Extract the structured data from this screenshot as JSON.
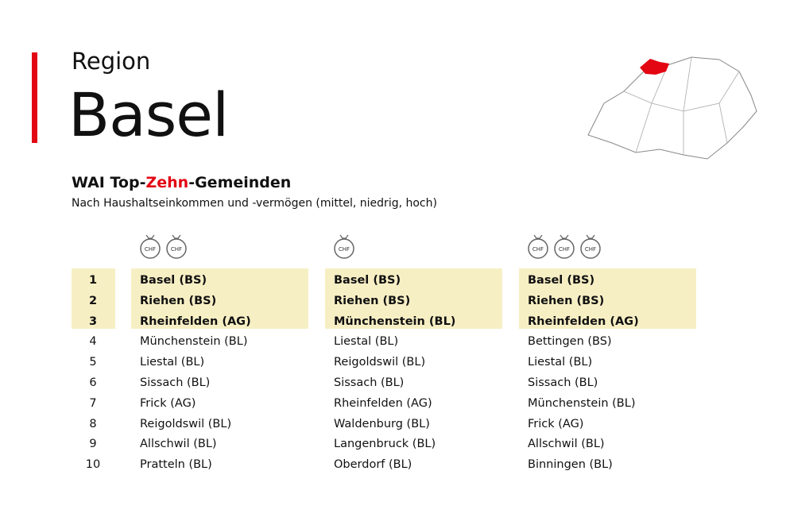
{
  "header": {
    "kicker": "Region",
    "title": "Basel"
  },
  "section": {
    "title_parts": [
      "WAI Top-",
      "Zehn",
      "-Gemeinden"
    ],
    "subtitle": "Nach Haushaltseinkommen und -vermögen (mittel, niedrig, hoch)"
  },
  "table": {
    "ranks": [
      1,
      2,
      3,
      4,
      5,
      6,
      7,
      8,
      9,
      10
    ],
    "columns": [
      {
        "icons": [
          "CHF",
          "CHF"
        ],
        "rows": [
          "Basel (BS)",
          "Riehen (BS)",
          "Rheinfelden (AG)",
          "Münchenstein (BL)",
          "Liestal (BL)",
          "Sissach (BL)",
          "Frick (AG)",
          "Reigoldswil (BL)",
          "Allschwil (BL)",
          "Pratteln (BL)"
        ]
      },
      {
        "icons": [
          "CHF"
        ],
        "rows": [
          "Basel (BS)",
          "Riehen (BS)",
          "Münchenstein (BL)",
          "Liestal (BL)",
          "Reigoldswil (BL)",
          "Sissach (BL)",
          "Rheinfelden (AG)",
          "Waldenburg (BL)",
          "Langenbruck (BL)",
          "Oberdorf (BL)"
        ]
      },
      {
        "icons": [
          "CHF",
          "CHF",
          "CHF"
        ],
        "rows": [
          "Basel (BS)",
          "Riehen (BS)",
          "Rheinfelden (AG)",
          "Bettingen (BS)",
          "Liestal (BL)",
          "Sissach (BL)",
          "Münchenstein (BL)",
          "Frick (AG)",
          "Allschwil (BL)",
          "Binningen (BL)"
        ]
      }
    ]
  }
}
